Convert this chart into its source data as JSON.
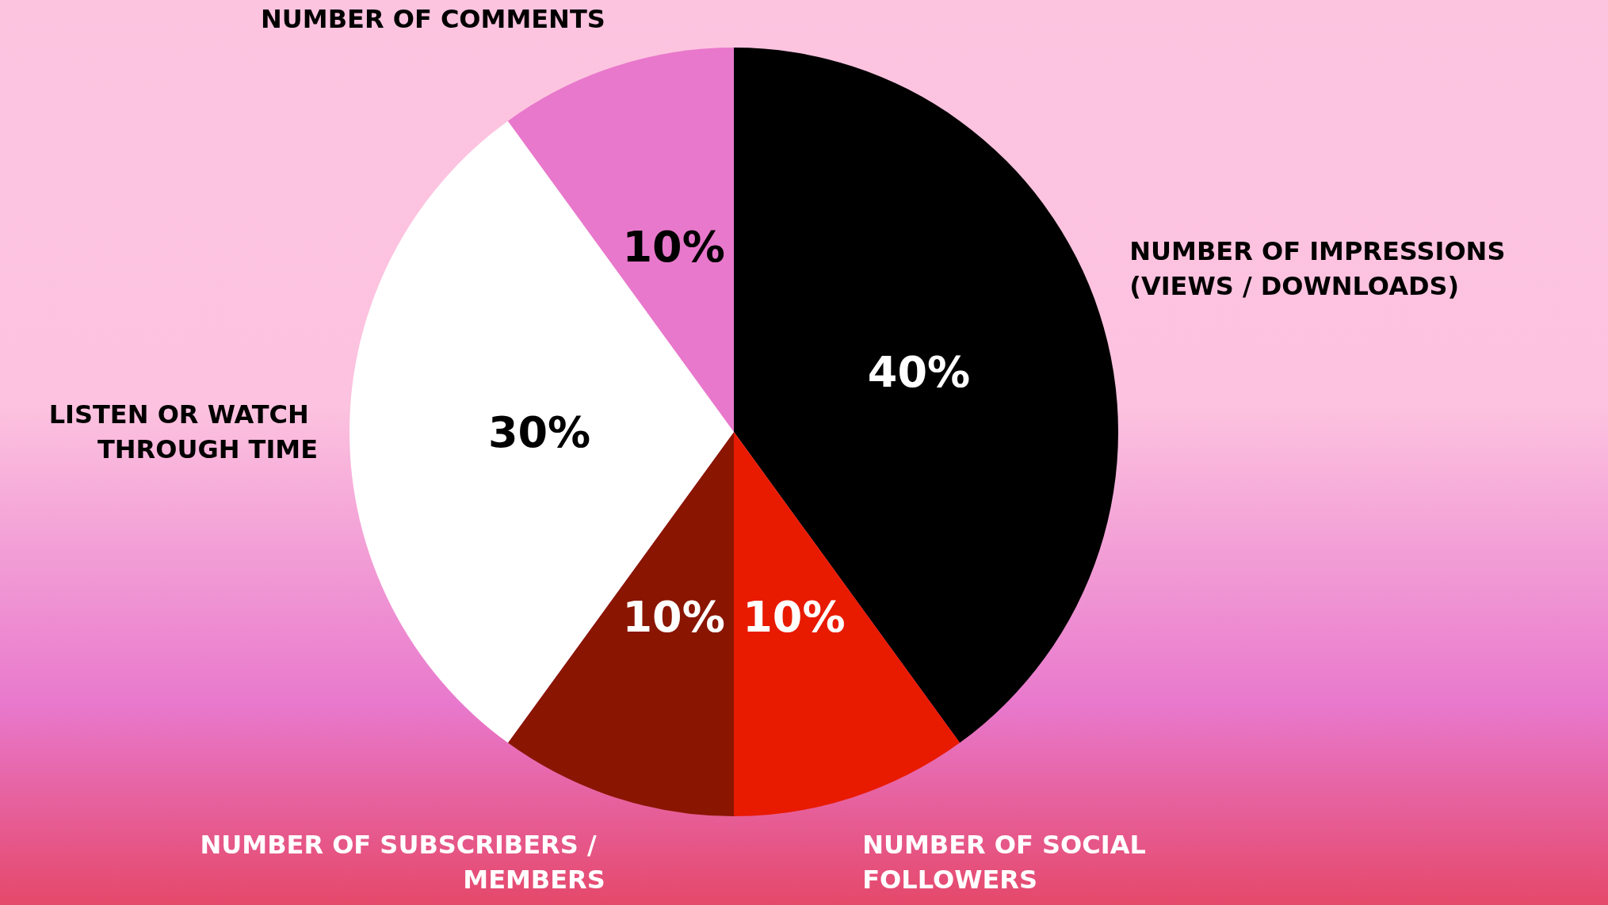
{
  "chart_data": {
    "type": "pie",
    "categories": [
      "NUMBER OF IMPRESSIONS (VIEWS / DOWNLOADS)",
      "NUMBER OF SOCIAL FOLLOWERS",
      "NUMBER OF SUBSCRIBERS / MEMBERS",
      "LISTEN OR WATCH THROUGH TIME",
      "NUMBER OF COMMENTS"
    ],
    "values": [
      40,
      10,
      10,
      30,
      10
    ],
    "value_labels": [
      "40%",
      "10%",
      "10%",
      "30%",
      "10%"
    ],
    "colors": [
      "#000000",
      "#e81a00",
      "#8a1500",
      "#ffffff",
      "#e878cc"
    ]
  }
}
